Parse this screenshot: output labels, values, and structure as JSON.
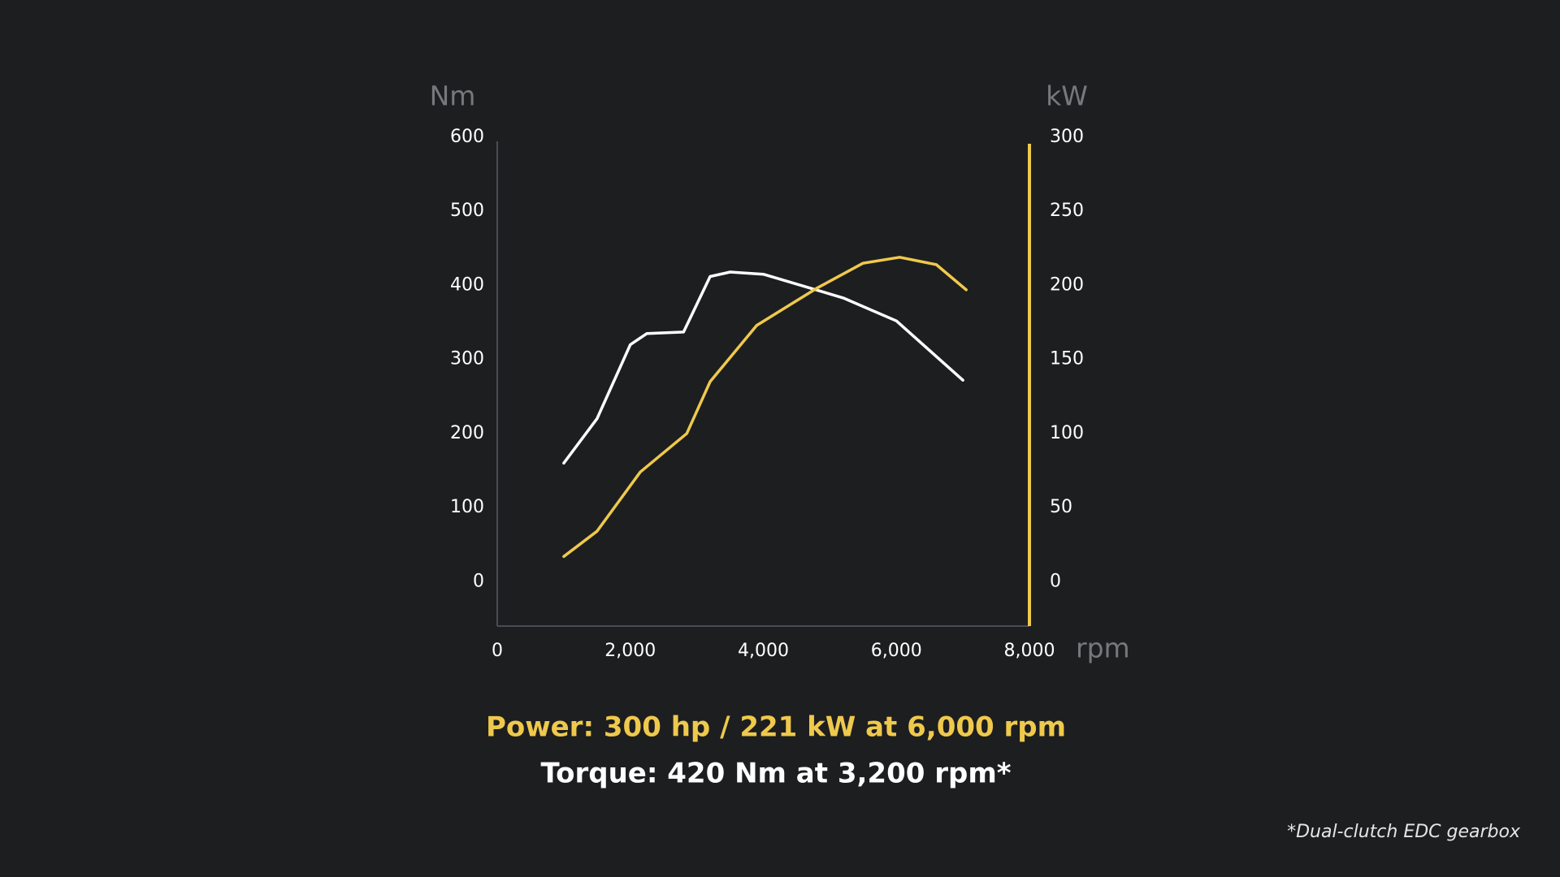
{
  "chart_data": {
    "type": "line",
    "ylabel": "Nm",
    "y2label": "kW",
    "xlabel": "rpm",
    "x": [
      1000,
      1500,
      2000,
      2250,
      2800,
      3200,
      3500,
      4000,
      5200,
      6000,
      7000
    ],
    "xlim": [
      0,
      8000
    ],
    "xticks": [
      0,
      {
        "value": 2000,
        "label": "2,000"
      },
      {
        "value": 4000,
        "label": "4,000"
      },
      {
        "value": 6000,
        "label": "6,000"
      },
      {
        "value": 8000,
        "label": "8,000"
      }
    ],
    "ylim": [
      -60,
      600
    ],
    "yticks": [
      0,
      100,
      200,
      300,
      400,
      500,
      600
    ],
    "y2lim": [
      -30,
      300
    ],
    "y2ticks": [
      0,
      50,
      100,
      150,
      200,
      250,
      300
    ],
    "series": [
      {
        "color": "#ffffff",
        "values": [
          160,
          220,
          320,
          335,
          337,
          412,
          418,
          415,
          383,
          352,
          272
        ]
      },
      {
        "color": "#efc94c",
        "axis": "y2",
        "x": [
          1000,
          1500,
          2150,
          2850,
          3200,
          3900,
          4800,
          5500,
          6050,
          6600,
          7050
        ],
        "values": [
          17,
          34,
          74,
          100,
          135,
          173,
          198,
          215,
          219,
          214,
          197
        ]
      }
    ],
    "annotations": [
      "Power: 300 hp / 221 kW at 6,000 rpm",
      "Torque: 420 Nm at 3,200 rpm*",
      "*Dual-clutch EDC gearbox"
    ]
  }
}
